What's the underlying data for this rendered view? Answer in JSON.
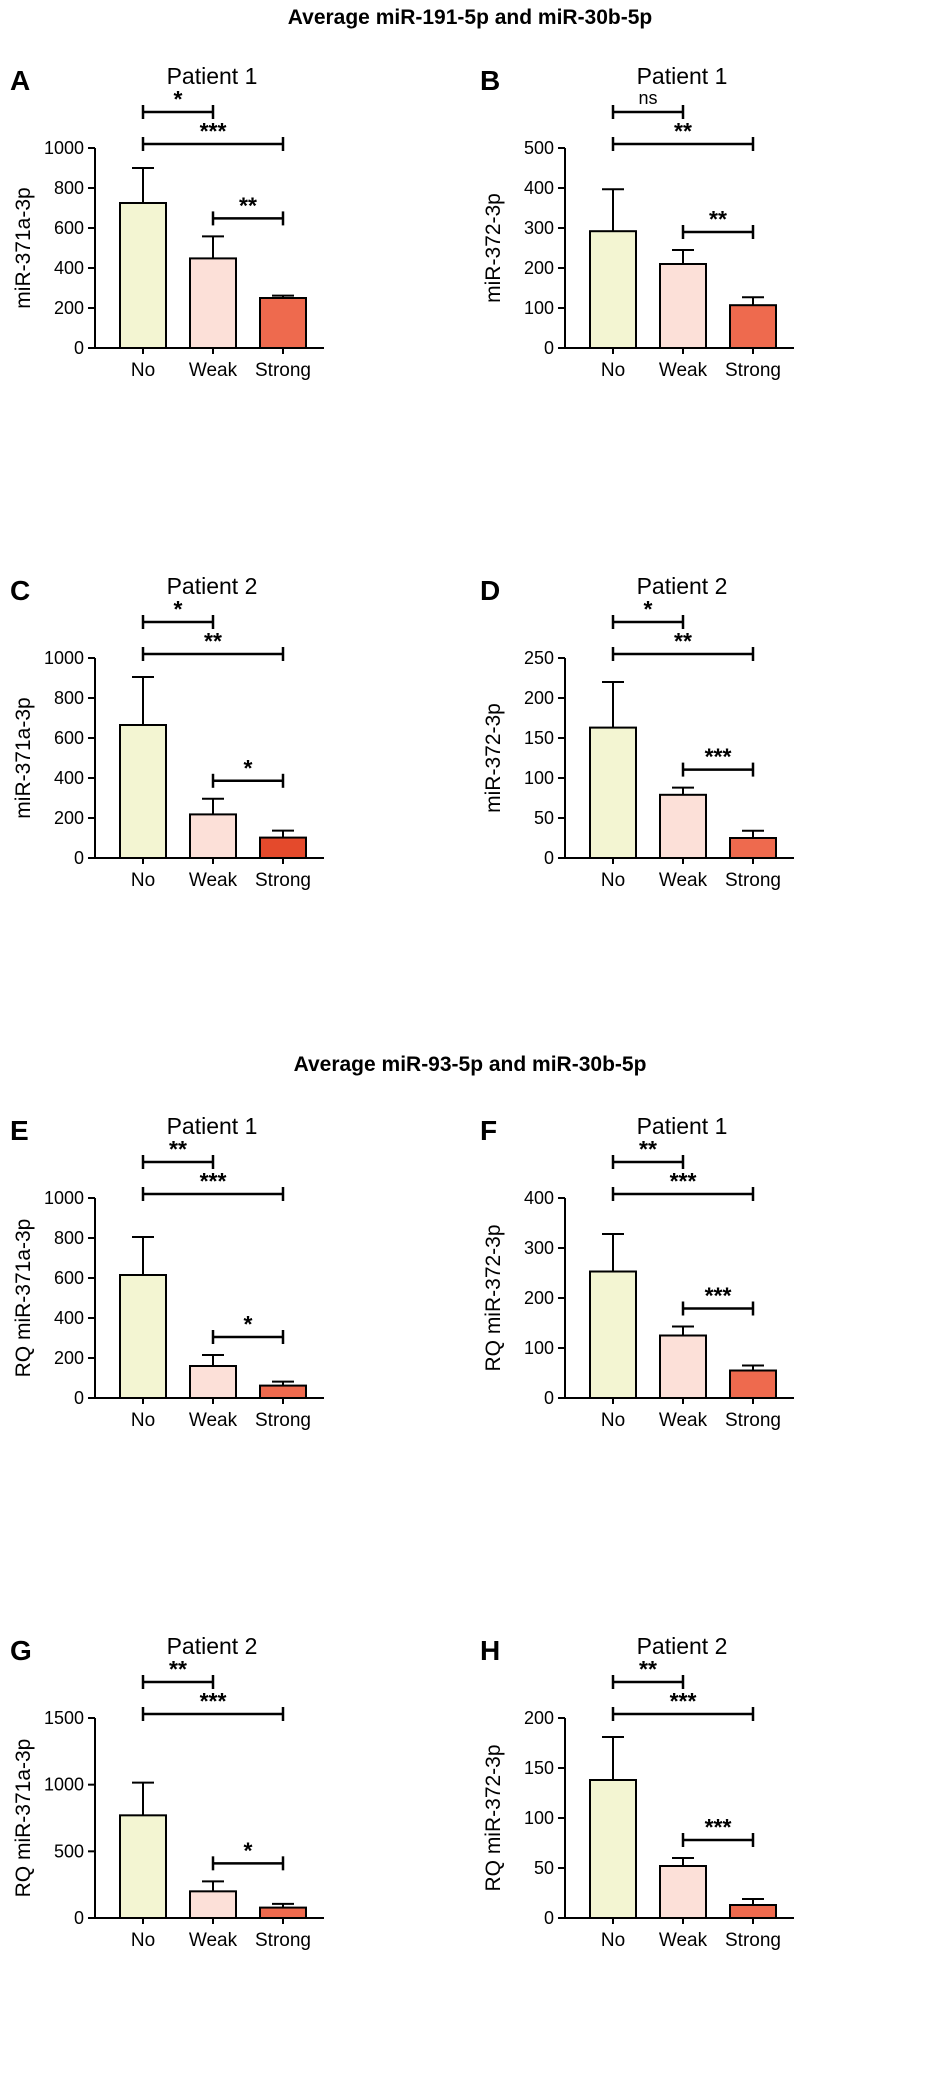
{
  "sections": [
    {
      "title": "Average miR-191-5p and miR-30b-5p"
    },
    {
      "title": "Average miR-93-5p and miR-30b-5p"
    }
  ],
  "colors": {
    "No": "#f3f5d2",
    "Weak": "#fce0d8",
    "Strong": "#ee6a4e",
    "Strong_dark": "#e44a2c",
    "axis": "#000000"
  },
  "chart_data": [
    {
      "panel": "A",
      "type": "bar",
      "title": "Patient 1",
      "ylabel": "miR-371a-3p",
      "categories": [
        "No",
        "Weak",
        "Strong"
      ],
      "values": [
        725,
        448,
        250
      ],
      "errors": [
        175,
        110,
        12
      ],
      "ylim": [
        0,
        1000
      ],
      "yticks": [
        0,
        200,
        400,
        600,
        800,
        1000
      ],
      "comparisons": [
        {
          "from": 0,
          "to": 1,
          "label": "*"
        },
        {
          "from": 0,
          "to": 2,
          "label": "***"
        },
        {
          "from": 1,
          "to": 2,
          "label": "**"
        }
      ]
    },
    {
      "panel": "B",
      "type": "bar",
      "title": "Patient 1",
      "ylabel": "miR-372-3p",
      "categories": [
        "No",
        "Weak",
        "Strong"
      ],
      "values": [
        292,
        210,
        107
      ],
      "errors": [
        105,
        35,
        20
      ],
      "ylim": [
        0,
        500
      ],
      "yticks": [
        0,
        100,
        200,
        300,
        400,
        500
      ],
      "comparisons": [
        {
          "from": 0,
          "to": 1,
          "label": "ns"
        },
        {
          "from": 0,
          "to": 2,
          "label": "**"
        },
        {
          "from": 1,
          "to": 2,
          "label": "**"
        }
      ]
    },
    {
      "panel": "C",
      "type": "bar",
      "title": "Patient 2",
      "ylabel": "miR-371a-3p",
      "categories": [
        "No",
        "Weak",
        "Strong"
      ],
      "values": [
        665,
        218,
        102
      ],
      "errors": [
        240,
        78,
        35
      ],
      "ylim": [
        0,
        1000
      ],
      "yticks": [
        0,
        200,
        400,
        600,
        800,
        1000
      ],
      "comparisons": [
        {
          "from": 0,
          "to": 1,
          "label": "*"
        },
        {
          "from": 0,
          "to": 2,
          "label": "**"
        },
        {
          "from": 1,
          "to": 2,
          "label": "*"
        }
      ]
    },
    {
      "panel": "D",
      "type": "bar",
      "title": "Patient 2",
      "ylabel": "miR-372-3p",
      "categories": [
        "No",
        "Weak",
        "Strong"
      ],
      "values": [
        163,
        79,
        25
      ],
      "errors": [
        57,
        9,
        9
      ],
      "ylim": [
        0,
        250
      ],
      "yticks": [
        0,
        50,
        100,
        150,
        200,
        250
      ],
      "comparisons": [
        {
          "from": 0,
          "to": 1,
          "label": "*"
        },
        {
          "from": 0,
          "to": 2,
          "label": "**"
        },
        {
          "from": 1,
          "to": 2,
          "label": "***"
        }
      ]
    },
    {
      "panel": "E",
      "type": "bar",
      "title": "Patient 1",
      "ylabel": "RQ miR-371a-3p",
      "categories": [
        "No",
        "Weak",
        "Strong"
      ],
      "values": [
        615,
        160,
        62
      ],
      "errors": [
        190,
        55,
        20
      ],
      "ylim": [
        0,
        1000
      ],
      "yticks": [
        0,
        200,
        400,
        600,
        800,
        1000
      ],
      "comparisons": [
        {
          "from": 0,
          "to": 1,
          "label": "**"
        },
        {
          "from": 0,
          "to": 2,
          "label": "***"
        },
        {
          "from": 1,
          "to": 2,
          "label": "*"
        }
      ]
    },
    {
      "panel": "F",
      "type": "bar",
      "title": "Patient 1",
      "ylabel": "RQ miR-372-3p",
      "categories": [
        "No",
        "Weak",
        "Strong"
      ],
      "values": [
        253,
        125,
        55
      ],
      "errors": [
        75,
        18,
        10
      ],
      "ylim": [
        0,
        400
      ],
      "yticks": [
        0,
        100,
        200,
        300,
        400
      ],
      "comparisons": [
        {
          "from": 0,
          "to": 1,
          "label": "**"
        },
        {
          "from": 0,
          "to": 2,
          "label": "***"
        },
        {
          "from": 1,
          "to": 2,
          "label": "***"
        }
      ]
    },
    {
      "panel": "G",
      "type": "bar",
      "title": "Patient 2",
      "ylabel": "RQ miR-371a-3p",
      "categories": [
        "No",
        "Weak",
        "Strong"
      ],
      "values": [
        770,
        200,
        78
      ],
      "errors": [
        245,
        75,
        28
      ],
      "ylim": [
        0,
        1500
      ],
      "yticks": [
        0,
        500,
        1000,
        1500
      ],
      "comparisons": [
        {
          "from": 0,
          "to": 1,
          "label": "**"
        },
        {
          "from": 0,
          "to": 2,
          "label": "***"
        },
        {
          "from": 1,
          "to": 2,
          "label": "*"
        }
      ]
    },
    {
      "panel": "H",
      "type": "bar",
      "title": "Patient 2",
      "ylabel": "RQ miR-372-3p",
      "categories": [
        "No",
        "Weak",
        "Strong"
      ],
      "values": [
        138,
        52,
        13
      ],
      "errors": [
        43,
        8,
        6
      ],
      "ylim": [
        0,
        200
      ],
      "yticks": [
        0,
        50,
        100,
        150,
        200
      ],
      "comparisons": [
        {
          "from": 0,
          "to": 1,
          "label": "**"
        },
        {
          "from": 0,
          "to": 2,
          "label": "***"
        },
        {
          "from": 1,
          "to": 2,
          "label": "***"
        }
      ]
    }
  ]
}
